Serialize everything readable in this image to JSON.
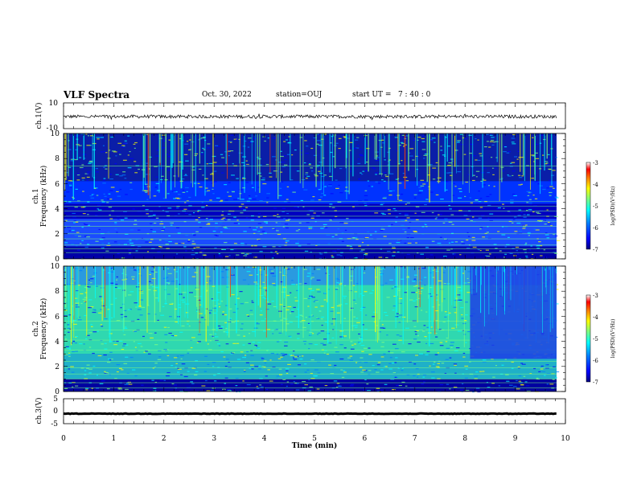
{
  "header": {
    "title": "VLF Spectra",
    "date": "Oct. 30, 2022",
    "station": "station=OUJ",
    "start": "start UT =   7 : 40 : 0"
  },
  "chart_data": [
    {
      "type": "line",
      "ylabel": "ch.1(V)",
      "ylim": [
        -10,
        10
      ],
      "yticks": [
        "10",
        "-10"
      ],
      "xlim": [
        0,
        10
      ],
      "baseline": 0,
      "noise_amplitude": 2
    },
    {
      "type": "heatmap",
      "ylabel_line1": "ch.1",
      "ylabel_line2": "Frequency (kHz)",
      "ylim": [
        0,
        10
      ],
      "xlim": [
        0,
        10
      ],
      "yticks": [
        "0",
        "2",
        "4",
        "6",
        "8",
        "10"
      ],
      "colorbar": {
        "label": "log(PSD)(V²/Hz)",
        "range": [
          -7,
          -3
        ],
        "ticks": [
          "-3",
          "-4",
          "-5",
          "-6",
          "-7"
        ]
      }
    },
    {
      "type": "heatmap",
      "ylabel_line1": "ch.2",
      "ylabel_line2": "Frequency (kHz)",
      "ylim": [
        0,
        10
      ],
      "xlim": [
        0,
        10
      ],
      "yticks": [
        "0",
        "2",
        "4",
        "6",
        "8",
        "10"
      ],
      "change_time_min": 8.1,
      "colorbar": {
        "label": "log(PSD)(V²/Hz)",
        "range": [
          -7,
          -3
        ],
        "ticks": [
          "-3",
          "-4",
          "-5",
          "-6",
          "-7"
        ]
      }
    },
    {
      "type": "line",
      "ylabel": "ch.3(V)",
      "ylim": [
        -5,
        5
      ],
      "yticks": [
        "5",
        "0",
        "-5"
      ],
      "xlim": [
        0,
        10
      ],
      "xticks": [
        "0",
        "1",
        "2",
        "3",
        "4",
        "5",
        "6",
        "7",
        "8",
        "9",
        "10"
      ],
      "xlabel": "Time (min)",
      "baseline": -1,
      "noise_amplitude": 0.3
    }
  ],
  "colors": {
    "colormap": [
      "#00007f",
      "#0000ff",
      "#007fff",
      "#00ffff",
      "#7fff7f",
      "#ffff00",
      "#ff7f00",
      "#ff0000",
      "#ffffff"
    ]
  }
}
